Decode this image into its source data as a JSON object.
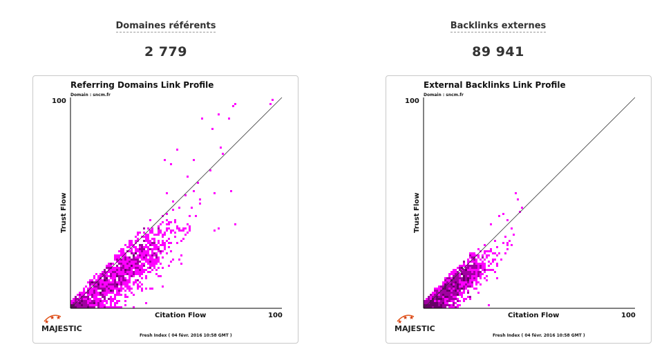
{
  "metrics": {
    "referring_domains": {
      "label": "Domaines référents",
      "value": "2 779"
    },
    "external_backlinks": {
      "label": "Backlinks externes",
      "value": "89 941"
    }
  },
  "colors": {
    "marker": "#ff00ff",
    "marker_dark": "#660066",
    "axis": "#000000",
    "card_border": "#c8c8c8"
  },
  "chart_data": [
    {
      "type": "scatter",
      "title": "Referring Domains Link Profile",
      "subtitle": "Domain : sncm.fr",
      "xlabel": "Citation Flow",
      "ylabel": "Trust Flow",
      "xlim": [
        0,
        100
      ],
      "ylim": [
        0,
        100
      ],
      "x_max_label": "100",
      "y_max_label": "100",
      "diagonal": true,
      "footer": "Fresh Index ( 04 févr. 2016 10:58 GMT )",
      "logo": "MAJESTIC",
      "distribution": {
        "points": 1500,
        "cf_mean": 22,
        "cf_sd": 14,
        "tf_ratio": 0.72,
        "tf_sd": 7,
        "tf_max_ratio": 1.05,
        "seed": 7
      },
      "outliers": [
        [
          96,
          99
        ],
        [
          95,
          97
        ],
        [
          78,
          97
        ],
        [
          77,
          96
        ],
        [
          70,
          92
        ],
        [
          75,
          90
        ],
        [
          62,
          90
        ],
        [
          67,
          85
        ],
        [
          71,
          76
        ],
        [
          72,
          73
        ],
        [
          66,
          65
        ],
        [
          68,
          55
        ],
        [
          76,
          56
        ],
        [
          78,
          40
        ],
        [
          70,
          38
        ],
        [
          68,
          37
        ],
        [
          60,
          60
        ],
        [
          58,
          70
        ],
        [
          55,
          62
        ],
        [
          50,
          75
        ],
        [
          48,
          68
        ],
        [
          45,
          70
        ],
        [
          46,
          55
        ]
      ]
    },
    {
      "type": "scatter",
      "title": "External Backlinks Link Profile",
      "subtitle": "Domain : sncm.fr",
      "xlabel": "Citation Flow",
      "ylabel": "Trust Flow",
      "xlim": [
        0,
        100
      ],
      "ylim": [
        0,
        100
      ],
      "x_max_label": "100",
      "y_max_label": "100",
      "diagonal": true,
      "footer": "Fresh Index ( 04 févr. 2016 10:58 GMT )",
      "logo": "MAJESTIC",
      "distribution": {
        "points": 1300,
        "cf_mean": 14,
        "cf_sd": 9,
        "tf_ratio": 0.75,
        "tf_sd": 5,
        "tf_max_ratio": 1.05,
        "seed": 13,
        "cf_max": 42
      },
      "outliers": [
        [
          44,
          55
        ],
        [
          45,
          52
        ],
        [
          47,
          48
        ],
        [
          46,
          46
        ],
        [
          38,
          45
        ],
        [
          36,
          44
        ],
        [
          32,
          40
        ],
        [
          40,
          42
        ],
        [
          42,
          38
        ],
        [
          43,
          35
        ],
        [
          38,
          31
        ],
        [
          35,
          29
        ],
        [
          40,
          28
        ],
        [
          42,
          30
        ]
      ]
    }
  ]
}
